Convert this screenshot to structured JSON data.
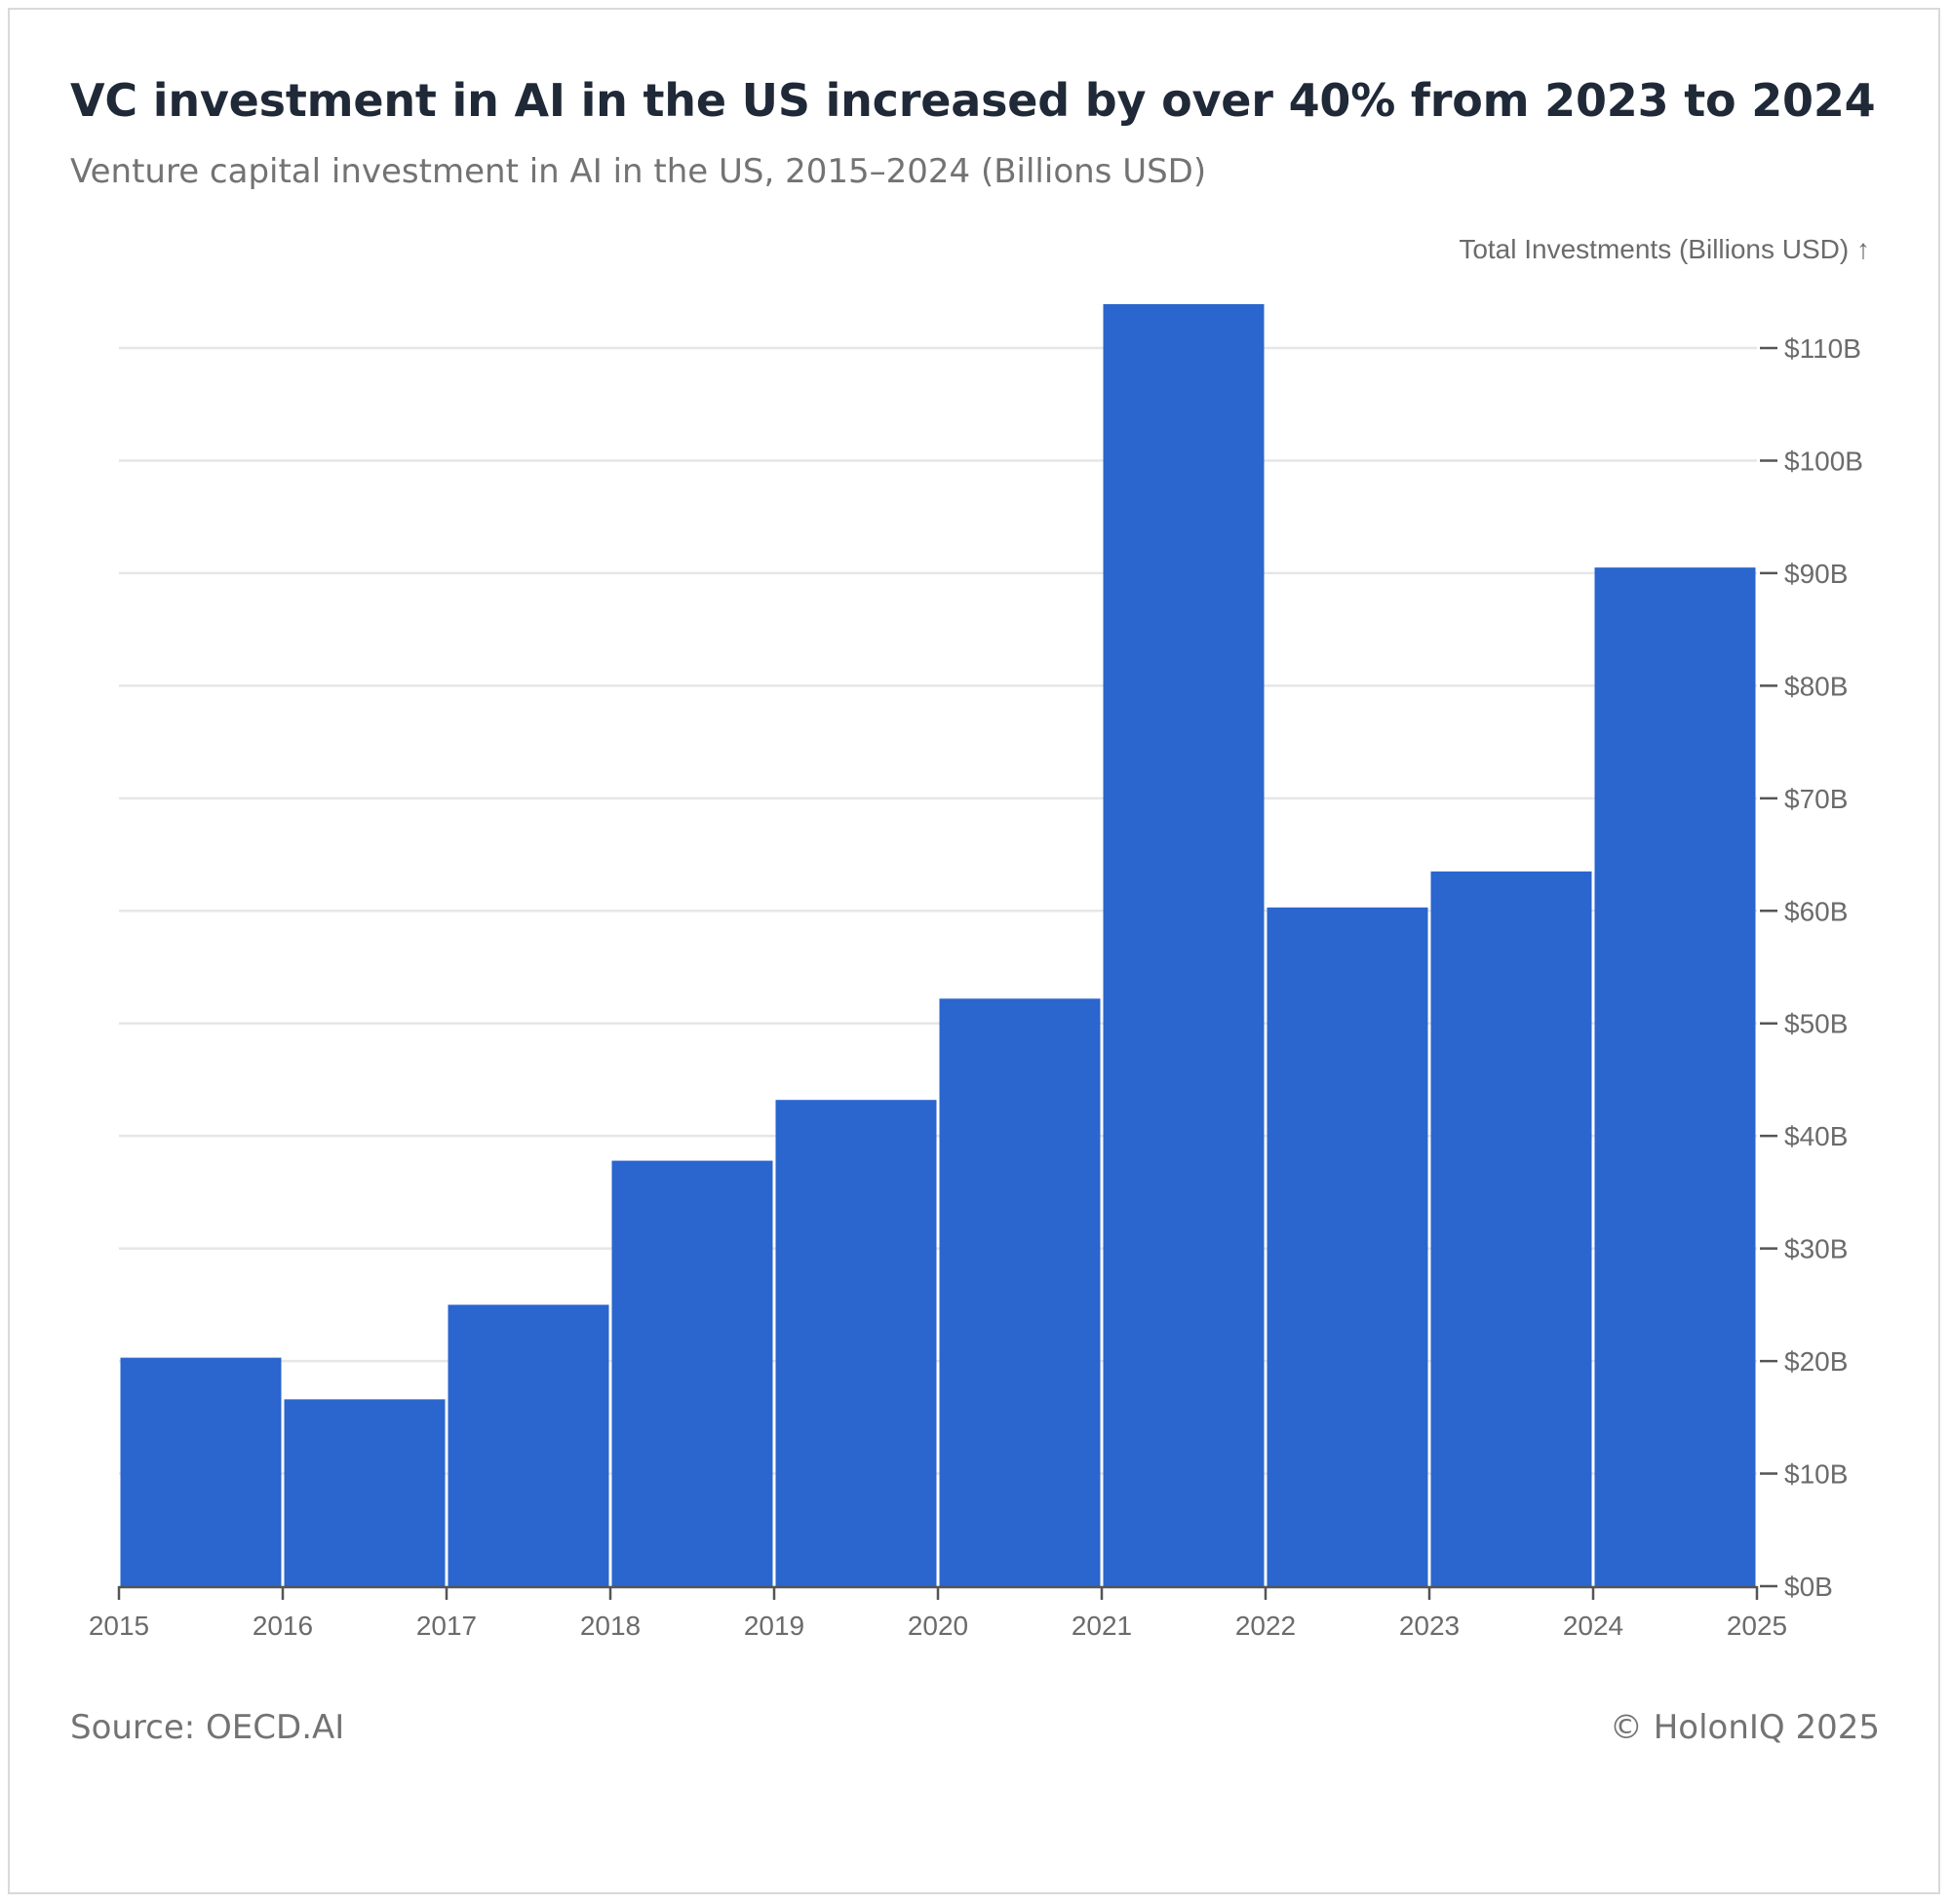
{
  "header": {
    "title": "VC investment in AI in the US increased by over 40% from 2023 to 2024",
    "subtitle": "Venture capital investment in AI in the US, 2015–2024 (Billions USD)"
  },
  "footer": {
    "source": "Source: OECD.AI",
    "copyright": "© HolonIQ 2025"
  },
  "colors": {
    "bar": "#2b65ce",
    "grid": "#e6e6e6",
    "axis": "#555555",
    "text": "#6b6b6b"
  },
  "chart_data": {
    "type": "bar",
    "title": "VC investment in AI in the US increased by over 40% from 2023 to 2024",
    "subtitle": "Venture capital investment in AI in the US, 2015–2024 (Billions USD)",
    "xlabel": "",
    "ylabel": "Total Investments (Billions USD) ↑",
    "y_axis_position": "right",
    "grid": "horizontal",
    "xlim": [
      2015,
      2025
    ],
    "ylim": [
      0,
      110
    ],
    "x_ticks": [
      2015,
      2016,
      2017,
      2018,
      2019,
      2020,
      2021,
      2022,
      2023,
      2024,
      2025
    ],
    "y_ticks": [
      0,
      10,
      20,
      30,
      40,
      50,
      60,
      70,
      80,
      90,
      100,
      110
    ],
    "y_tick_labels": [
      "$0B",
      "$10B",
      "$20B",
      "$30B",
      "$40B",
      "$50B",
      "$60B",
      "$70B",
      "$80B",
      "$90B",
      "$100B",
      "$110B"
    ],
    "categories": [
      "2015",
      "2016",
      "2017",
      "2018",
      "2019",
      "2020",
      "2021",
      "2022",
      "2023",
      "2024"
    ],
    "values": [
      20.3,
      16.6,
      25.0,
      37.8,
      43.2,
      52.2,
      113.9,
      60.3,
      63.5,
      90.5
    ]
  }
}
